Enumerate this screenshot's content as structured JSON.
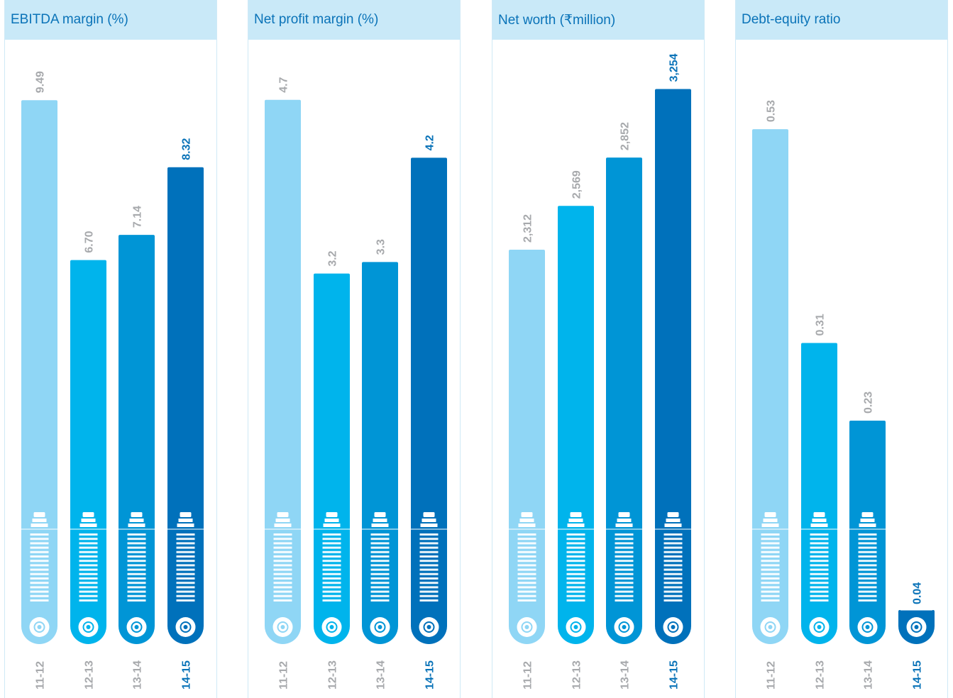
{
  "chart_data": [
    {
      "type": "bar",
      "title": "EBITDA margin",
      "unit": "(%)",
      "categories": [
        "11-12",
        "12-13",
        "13-14",
        "14-15"
      ],
      "values": [
        9.49,
        6.7,
        7.14,
        8.32
      ],
      "labels": [
        "9.49",
        "6.70",
        "7.14",
        "8.32"
      ],
      "ylim": [
        0,
        10.0
      ]
    },
    {
      "type": "bar",
      "title": "Net profit margin",
      "unit": "(%)",
      "categories": [
        "11-12",
        "12-13",
        "13-14",
        "14-15"
      ],
      "values": [
        4.7,
        3.2,
        3.3,
        4.2
      ],
      "labels": [
        "4.7",
        "3.2",
        "3.3",
        "4.2"
      ],
      "ylim": [
        0,
        4.95
      ]
    },
    {
      "type": "bar",
      "title": "Net worth",
      "unit": "(₹million)",
      "categories": [
        "11-12",
        "12-13",
        "13-14",
        "14-15"
      ],
      "values": [
        2312,
        2569,
        2852,
        3254
      ],
      "labels": [
        "2,312",
        "2,569",
        "2,852",
        "3,254"
      ],
      "ylim": [
        0,
        3360
      ]
    },
    {
      "type": "bar",
      "title": "Debt-equity ratio",
      "unit": "",
      "categories": [
        "11-12",
        "12-13",
        "13-14",
        "14-15"
      ],
      "values": [
        0.53,
        0.31,
        0.23,
        0.04
      ],
      "labels": [
        "0.53",
        "0.31",
        "0.23",
        "0.04"
      ],
      "ylim": [
        0,
        0.59
      ]
    }
  ],
  "colors": {
    "bars": [
      "#8fd6f5",
      "#00b4ec",
      "#0095d6",
      "#0071bb"
    ],
    "label_muted": "#a7a9ac",
    "label_current": "#0a73b8",
    "panel_header": "#c9e9f8",
    "panel_border": "#cfe9f6"
  }
}
